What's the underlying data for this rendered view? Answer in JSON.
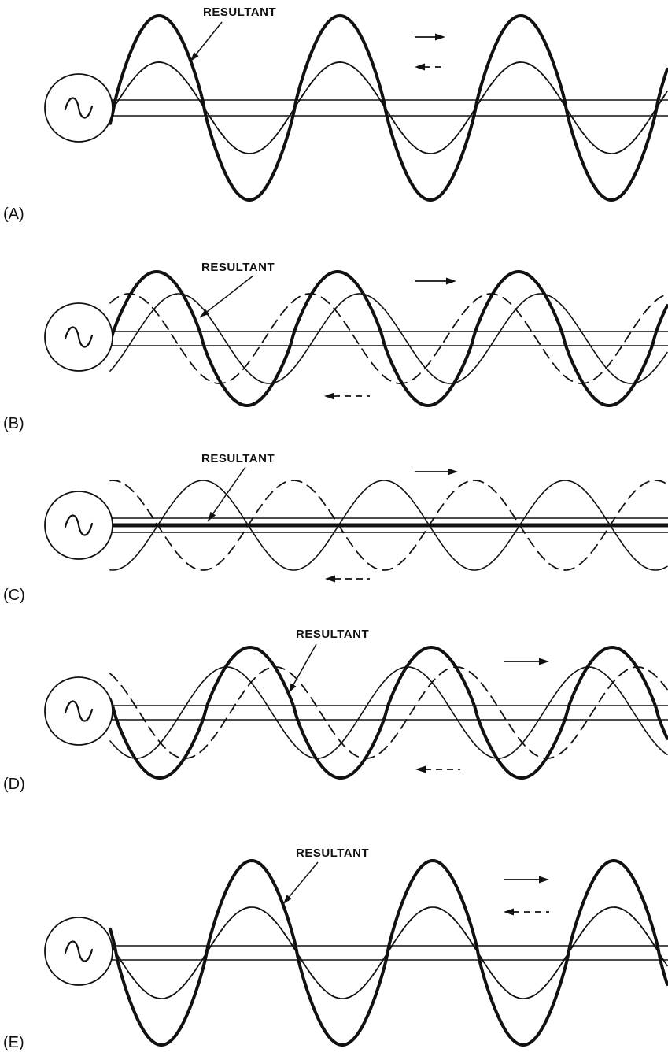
{
  "panels": [
    {
      "id": "A",
      "label": "(A)",
      "resultant_label": "RESULTANT"
    },
    {
      "id": "B",
      "label": "(B)",
      "resultant_label": "RESULTANT"
    },
    {
      "id": "C",
      "label": "(C)",
      "resultant_label": "RESULTANT"
    },
    {
      "id": "D",
      "label": "(D)",
      "resultant_label": "RESULTANT"
    },
    {
      "id": "E",
      "label": "(E)",
      "resultant_label": "RESULTANT"
    }
  ],
  "icons": {
    "source": "ac-source-icon",
    "forward_arrow": "solid-right-arrow-icon",
    "reflected_arrow": "dashed-left-arrow-icon"
  },
  "colors": {
    "ink": "#111111",
    "paper": "#ffffff"
  }
}
